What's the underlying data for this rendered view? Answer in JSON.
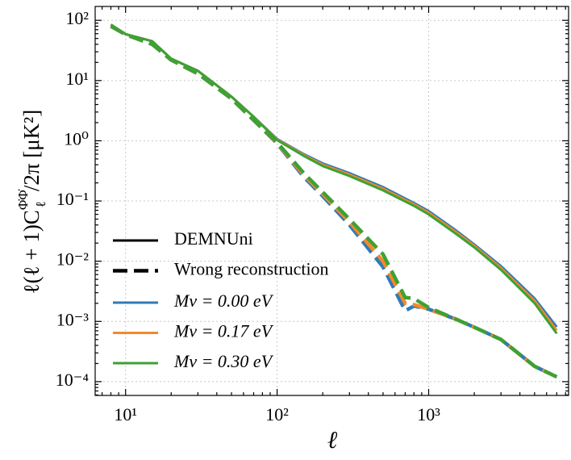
{
  "chart_data": {
    "type": "line",
    "log_x": true,
    "log_y": true,
    "grid": true,
    "xlabel": "ℓ",
    "ylabel": {
      "main": "ℓ(ℓ + 1)C",
      "sub": "ℓ",
      "sup": "Φ̇Φ̇",
      "rest": "/2π [μK²]"
    },
    "xlim": [
      6.3,
      8380
    ],
    "ylim": [
      5.9e-05,
      170
    ],
    "xticks": [
      {
        "value": 10,
        "label": "10¹"
      },
      {
        "value": 100,
        "label": "10²"
      },
      {
        "value": 1000,
        "label": "10³"
      }
    ],
    "yticks": [
      {
        "value": 0.0001,
        "label": "10⁻⁴"
      },
      {
        "value": 0.001,
        "label": "10⁻³"
      },
      {
        "value": 0.01,
        "label": "10⁻²"
      },
      {
        "value": 0.1,
        "label": "10⁻¹"
      },
      {
        "value": 1,
        "label": "10⁰"
      },
      {
        "value": 10,
        "label": "10¹"
      },
      {
        "value": 100,
        "label": "10²"
      }
    ],
    "legend": "lower left",
    "linestyles": [
      {
        "name": "DEMNUni",
        "dashed": false
      },
      {
        "name": "Wrong reconstruction",
        "dashed": true
      }
    ],
    "x": [
      8,
      10,
      15,
      20,
      30,
      50,
      70,
      100,
      150,
      200,
      300,
      500,
      700,
      800,
      1000,
      1500,
      2000,
      3000,
      5000,
      7000
    ],
    "series": [
      {
        "name": "Mν = 0.00 eV",
        "color": "#2f7bb6",
        "values": [
          85,
          59,
          45,
          23,
          14.5,
          5.4,
          2.5,
          1.07,
          0.6,
          0.42,
          0.29,
          0.17,
          0.11,
          0.093,
          0.068,
          0.033,
          0.019,
          0.0083,
          0.0024,
          0.00081
        ],
        "wrong_values": [
          80,
          58,
          40,
          22,
          13,
          5,
          2.2,
          0.9,
          0.25,
          0.12,
          0.04,
          0.008,
          0.0015,
          0.0018,
          0.0016,
          0.0011,
          0.0008,
          0.0005,
          0.00018,
          0.00012
        ]
      },
      {
        "name": "Mν = 0.17 eV",
        "color": "#f5892a",
        "values": [
          85,
          59,
          45,
          23,
          14.5,
          5.4,
          2.5,
          1.05,
          0.58,
          0.4,
          0.275,
          0.16,
          0.104,
          0.088,
          0.064,
          0.031,
          0.018,
          0.0077,
          0.0022,
          0.00071
        ],
        "wrong_values": [
          80,
          58,
          40,
          22,
          13,
          5,
          2.2,
          0.92,
          0.27,
          0.13,
          0.045,
          0.01,
          0.002,
          0.0019,
          0.0016,
          0.0011,
          0.0008,
          0.0005,
          0.00018,
          0.00012
        ]
      },
      {
        "name": "Mν = 0.30 eV",
        "color": "#3da135",
        "values": [
          85,
          59,
          45,
          23,
          14.5,
          5.4,
          2.5,
          1.03,
          0.56,
          0.38,
          0.26,
          0.15,
          0.098,
          0.083,
          0.06,
          0.029,
          0.017,
          0.0072,
          0.002,
          0.00063
        ],
        "wrong_values": [
          80,
          58,
          40,
          22,
          13,
          5,
          2.2,
          0.94,
          0.29,
          0.14,
          0.05,
          0.013,
          0.0025,
          0.0024,
          0.0017,
          0.0011,
          0.0008,
          0.0005,
          0.00018,
          0.00012
        ]
      }
    ]
  }
}
